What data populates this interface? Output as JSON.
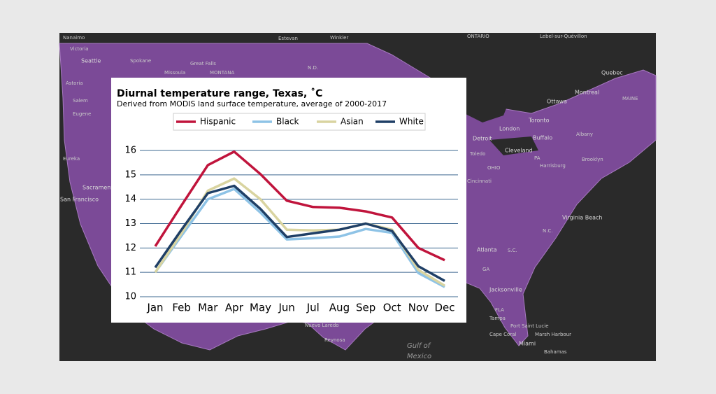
{
  "chart_data": {
    "type": "line",
    "title": "Diurnal temperature range, Texas, ˚C",
    "subtitle": "Derived from MODIS land surface temperature, average of 2000-2017",
    "categories": [
      "Jan",
      "Feb",
      "Mar",
      "Apr",
      "May",
      "Jun",
      "Jul",
      "Aug",
      "Sep",
      "Oct",
      "Nov",
      "Dec"
    ],
    "series": [
      {
        "name": "Hispanic",
        "color": "#c0143c",
        "values": [
          12.07,
          13.75,
          15.4,
          15.95,
          15.03,
          13.94,
          13.68,
          13.65,
          13.5,
          13.25,
          12.0,
          11.5
        ]
      },
      {
        "name": "Black",
        "color": "#8ec3e6",
        "values": [
          11.0,
          12.5,
          14.0,
          14.42,
          13.45,
          12.35,
          12.4,
          12.47,
          12.78,
          12.62,
          10.97,
          10.4
        ]
      },
      {
        "name": "Asian",
        "color": "#d9d4a0",
        "values": [
          11.0,
          12.6,
          14.35,
          14.85,
          14.0,
          12.75,
          12.72,
          12.75,
          13.0,
          12.75,
          11.1,
          10.45
        ]
      },
      {
        "name": "White",
        "color": "#1f3f66",
        "values": [
          11.2,
          12.75,
          14.25,
          14.55,
          13.6,
          12.45,
          12.6,
          12.75,
          13.0,
          12.7,
          11.25,
          10.65
        ]
      }
    ],
    "ylim": [
      10,
      16
    ],
    "yticks": [
      10,
      11,
      12,
      13,
      14,
      15,
      16
    ],
    "grid": true,
    "legend": "top"
  },
  "map_labels": [
    "Nanaimo",
    "Victoria",
    "Seattle",
    "Spokane",
    "Missoula",
    "Great Falls",
    "MONTANA",
    "Estevan",
    "Winkler",
    "ONTARIO",
    "Lebel-sur-Quévillon",
    "Quebec",
    "Montreal",
    "Ottawa",
    "Toronto",
    "London",
    "Detroit",
    "Buffalo",
    "Albany",
    "Toledo",
    "Cleveland",
    "Harrisburg",
    "Brooklyn",
    "Cincinnati",
    "Virginia Beach",
    "Atlanta",
    "Jacksonville",
    "Tampa",
    "Port Saint Lucie",
    "Cape Coral",
    "Marsh Harbour",
    "Miami",
    "Bahamas",
    "Gulf of",
    "Mexico",
    "Reynosa",
    "Nuevo Laredo",
    "Sacramento",
    "San Francisco",
    "Eureka",
    "Eugene",
    "Salem",
    "Astoria",
    "MAINE",
    "N.D.",
    "OHIO",
    "PA",
    "N.C.",
    "S.C.",
    "GA",
    "FLA"
  ]
}
